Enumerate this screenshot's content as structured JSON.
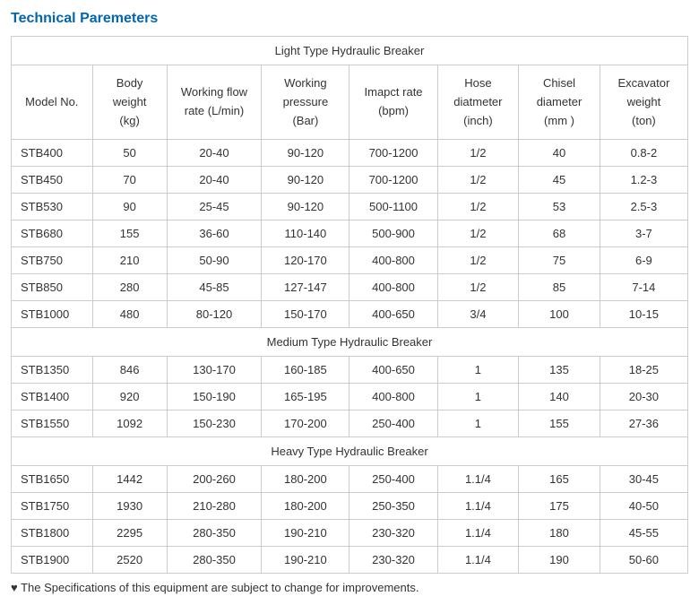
{
  "title": "Technical Paremeters",
  "columns": [
    "Model No.",
    "Body weight (kg)",
    "Working flow rate (L/min)",
    "Working pressure (Bar)",
    "Imapct rate (bpm)",
    "Hose diatmeter (inch)",
    "Chisel diameter (mm )",
    "Excavator weight (ton)"
  ],
  "col_widths": [
    "12%",
    "11%",
    "14%",
    "13%",
    "13%",
    "12%",
    "12%",
    "13%"
  ],
  "sections": [
    {
      "label": "Light Type Hydraulic Breaker",
      "rows": [
        [
          "STB400",
          "50",
          "20-40",
          "90-120",
          "700-1200",
          "1/2",
          "40",
          "0.8-2"
        ],
        [
          "STB450",
          "70",
          "20-40",
          "90-120",
          "700-1200",
          "1/2",
          "45",
          "1.2-3"
        ],
        [
          "STB530",
          "90",
          "25-45",
          "90-120",
          "500-1100",
          "1/2",
          "53",
          "2.5-3"
        ],
        [
          "STB680",
          "155",
          "36-60",
          "110-140",
          "500-900",
          "1/2",
          "68",
          "3-7"
        ],
        [
          "STB750",
          "210",
          "50-90",
          "120-170",
          "400-800",
          "1/2",
          "75",
          "6-9"
        ],
        [
          "STB850",
          "280",
          "45-85",
          "127-147",
          "400-800",
          "1/2",
          "85",
          "7-14"
        ],
        [
          "STB1000",
          "480",
          "80-120",
          "150-170",
          "400-650",
          "3/4",
          "100",
          "10-15"
        ]
      ]
    },
    {
      "label": "Medium Type Hydraulic Breaker",
      "rows": [
        [
          "STB1350",
          "846",
          "130-170",
          "160-185",
          "400-650",
          "1",
          "135",
          "18-25"
        ],
        [
          "STB1400",
          "920",
          "150-190",
          "165-195",
          "400-800",
          "1",
          "140",
          "20-30"
        ],
        [
          "STB1550",
          "1092",
          "150-230",
          "170-200",
          "250-400",
          "1",
          "155",
          "27-36"
        ]
      ]
    },
    {
      "label": "Heavy Type Hydraulic Breaker",
      "rows": [
        [
          "STB1650",
          "1442",
          "200-260",
          "180-200",
          "250-400",
          "1.1/4",
          "165",
          "30-45"
        ],
        [
          "STB1750",
          "1930",
          "210-280",
          "180-200",
          "250-350",
          "1.1/4",
          "175",
          "40-50"
        ],
        [
          "STB1800",
          "2295",
          "280-350",
          "190-210",
          "230-320",
          "1.1/4",
          "180",
          "45-55"
        ],
        [
          "STB1900",
          "2520",
          "280-350",
          "190-210",
          "230-320",
          "1.1/4",
          "190",
          "50-60"
        ]
      ]
    }
  ],
  "note": "♥ The Specifications of this equipment are subject to change for improvements.",
  "colors": {
    "title": "#0066b3",
    "border": "#cccccc",
    "text": "#333333",
    "background": "#ffffff"
  }
}
